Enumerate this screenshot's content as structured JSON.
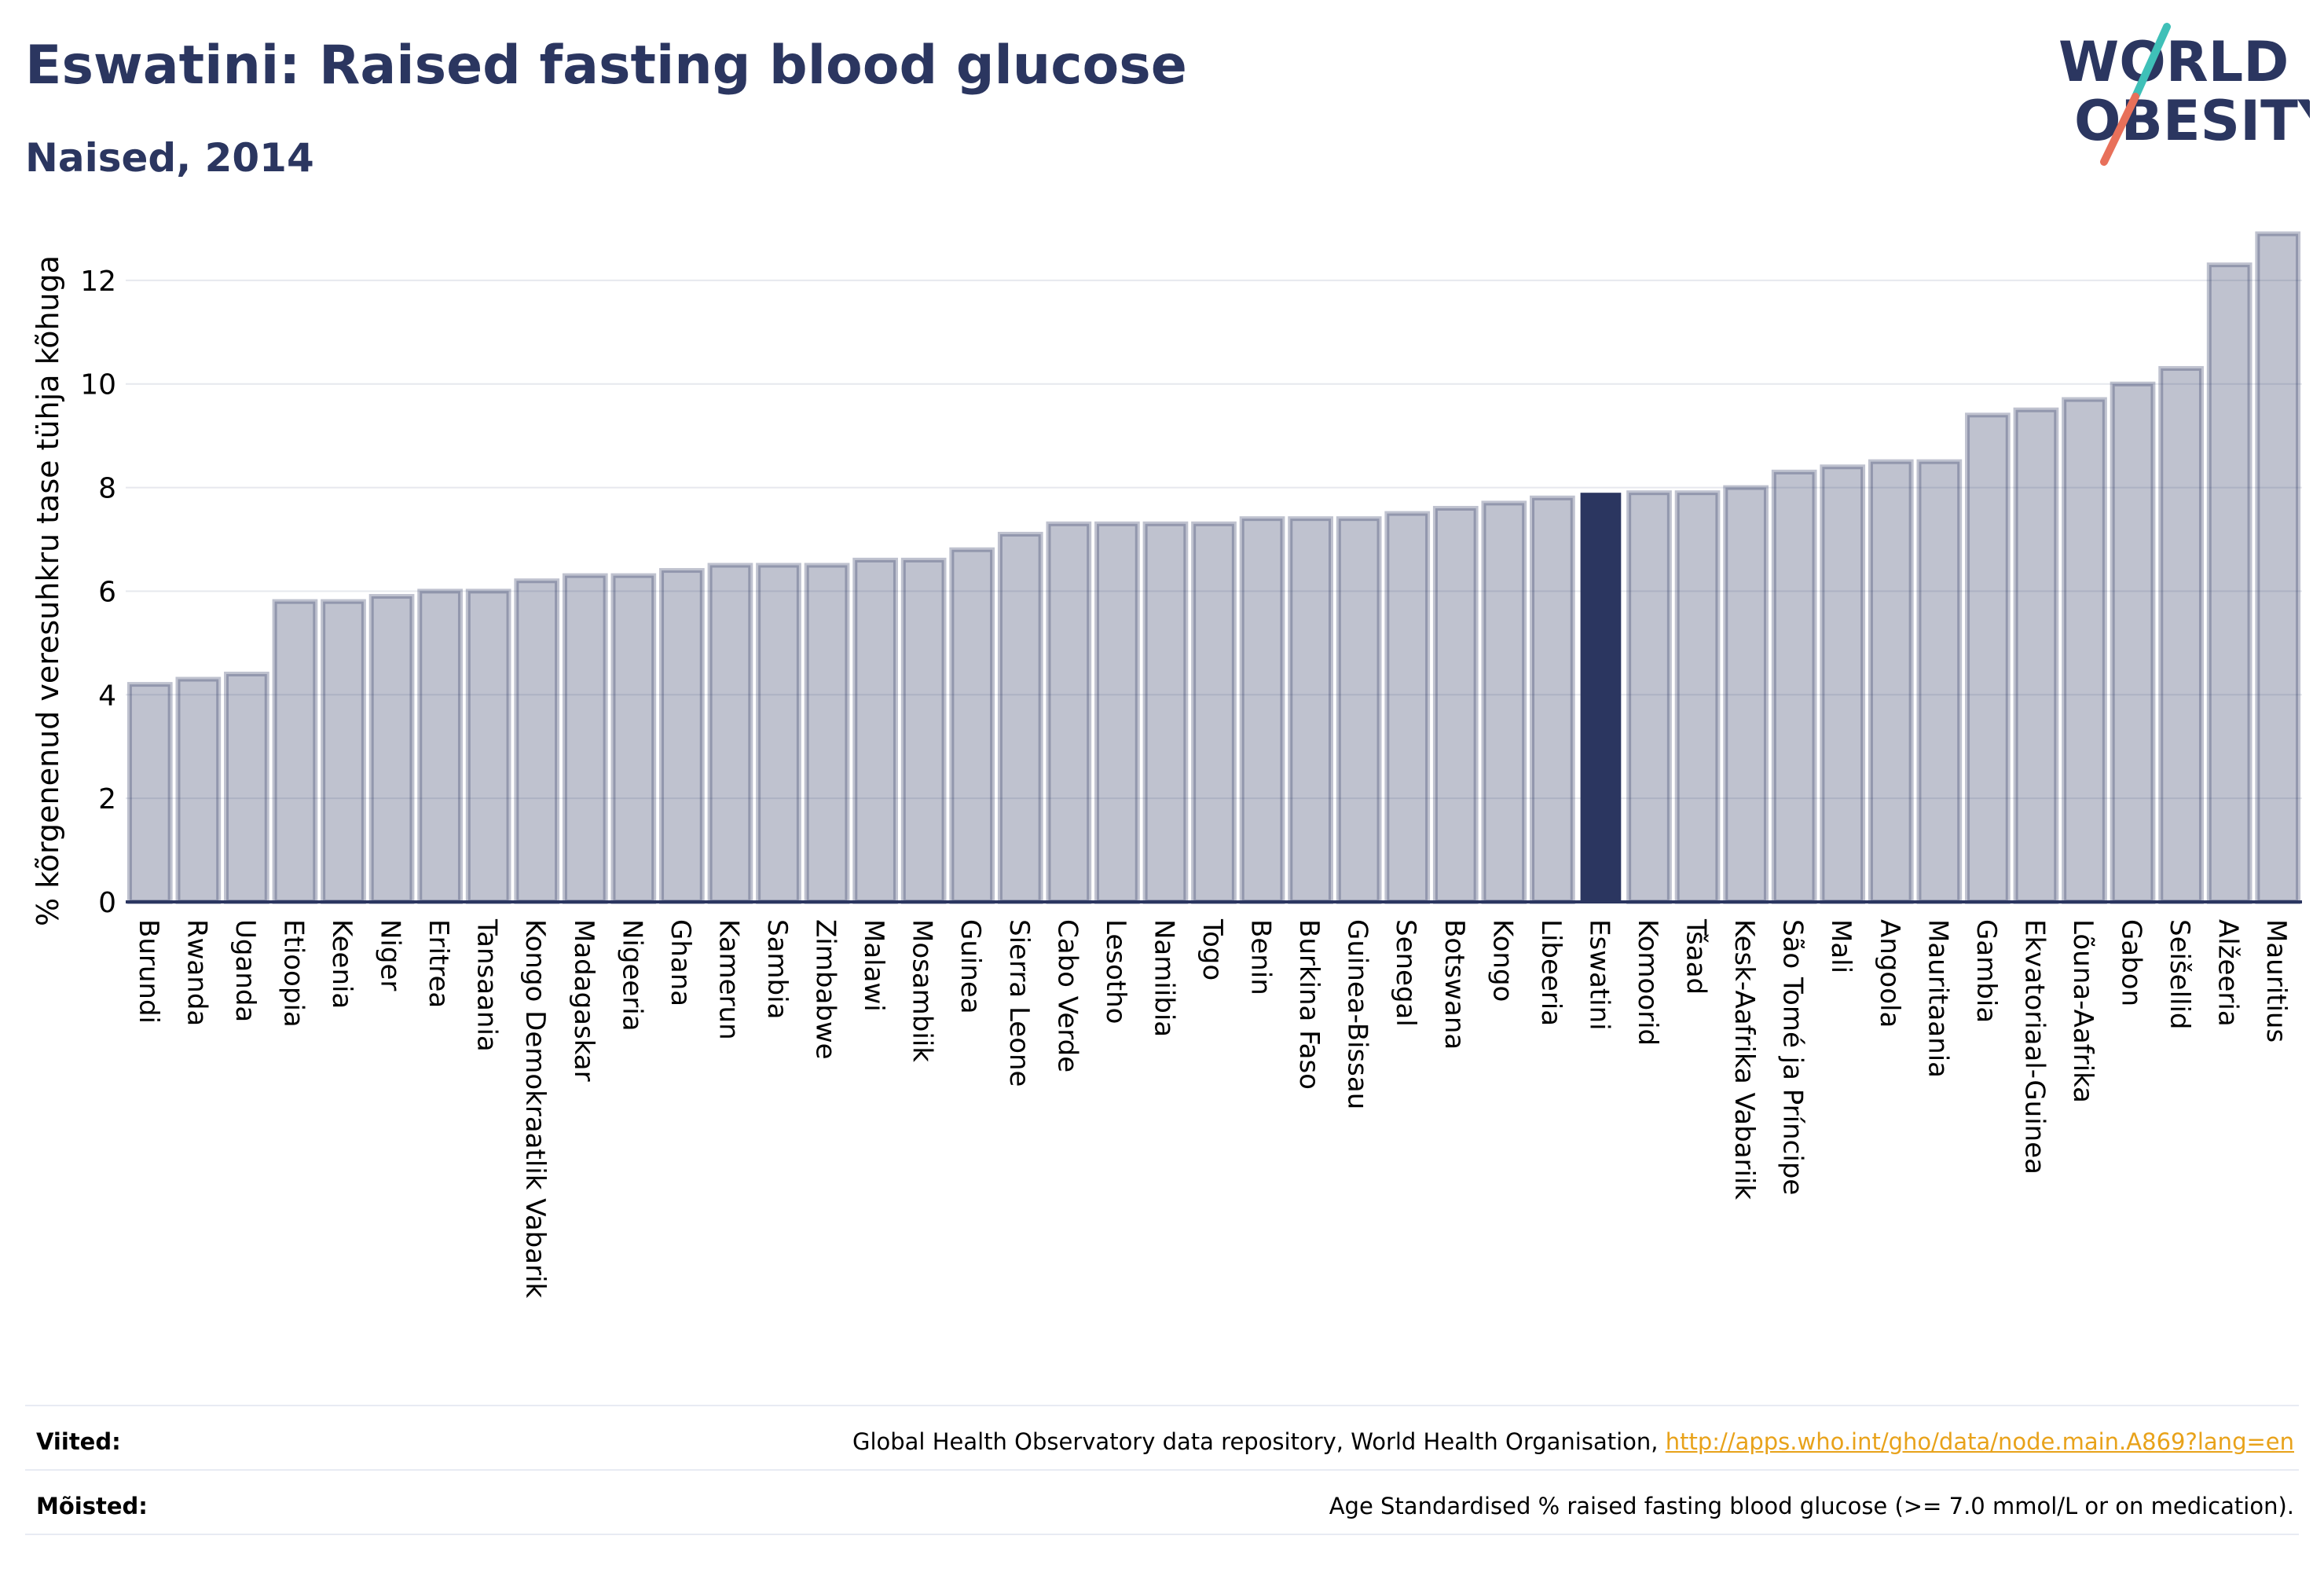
{
  "header": {
    "title": "Eswatini: Raised fasting blood glucose",
    "subtitle": "Naised, 2014"
  },
  "logo": {
    "line1": "WORLD",
    "line2": "OBESITY",
    "colors": {
      "text": "#2b3660",
      "slash_teal": "#3fc0b8",
      "slash_coral": "#e8705a"
    }
  },
  "colors": {
    "bar_fill": "rgba(43,54,96,0.3)",
    "bar_stroke": "rgba(43,54,96,0.3)",
    "highlight": "#2b3660",
    "grid": "#e6e8ee",
    "axis": "#2b3660",
    "link": "#e8a21a"
  },
  "chart_data": {
    "type": "bar",
    "title": "Eswatini: Raised fasting blood glucose",
    "subtitle": "Naised, 2014",
    "ylabel": "% kõrgenenud veresuhkru tase tühja kõhuga",
    "xlabel": "",
    "ylim": [
      0,
      13.5
    ],
    "yticks": [
      0,
      2,
      4,
      6,
      8,
      10,
      12
    ],
    "grid": true,
    "highlight": "Eswatini",
    "categories": [
      "Burundi",
      "Rwanda",
      "Uganda",
      "Etioopia",
      "Keenia",
      "Niger",
      "Eritrea",
      "Tansaania",
      "Kongo Demokraatlik Vabarik",
      "Madagaskar",
      "Nigeeria",
      "Ghana",
      "Kamerun",
      "Sambia",
      "Zimbabwe",
      "Malawi",
      "Mosambiik",
      "Guinea",
      "Sierra Leone",
      "Cabo Verde",
      "Lesotho",
      "Namiibia",
      "Togo",
      "Benin",
      "Burkina Faso",
      "Guinea-Bissau",
      "Senegal",
      "Botswana",
      "Kongo",
      "Libeeria",
      "Eswatini",
      "Komoorid",
      "Tšaad",
      "Kesk-Aafrika Vabariik",
      "São Tomé ja Príncipe",
      "Mali",
      "Angoola",
      "Mauritaania",
      "Gambia",
      "Ekvatoriaal-Guinea",
      "Lõuna-Aafrika",
      "Gabon",
      "Seišellid",
      "Alžeeria",
      "Mauritius"
    ],
    "values": [
      4.2,
      4.3,
      4.4,
      5.8,
      5.8,
      5.9,
      6.0,
      6.0,
      6.2,
      6.3,
      6.3,
      6.4,
      6.5,
      6.5,
      6.5,
      6.6,
      6.6,
      6.8,
      7.1,
      7.3,
      7.3,
      7.3,
      7.3,
      7.4,
      7.4,
      7.4,
      7.5,
      7.6,
      7.7,
      7.8,
      7.9,
      7.9,
      7.9,
      8.0,
      8.3,
      8.4,
      8.5,
      8.5,
      9.4,
      9.5,
      9.7,
      10.0,
      10.3,
      12.3,
      12.9
    ]
  },
  "footer": {
    "sources_label": "Viited:",
    "sources_text": "Global Health Observatory data repository, World Health Organisation, ",
    "sources_link": "http://apps.who.int/gho/data/node.main.A869?lang=en",
    "definitions_label": "Mõisted:",
    "definitions_text": "Age Standardised % raised fasting blood glucose (>= 7.0 mmol/L or on medication)."
  }
}
